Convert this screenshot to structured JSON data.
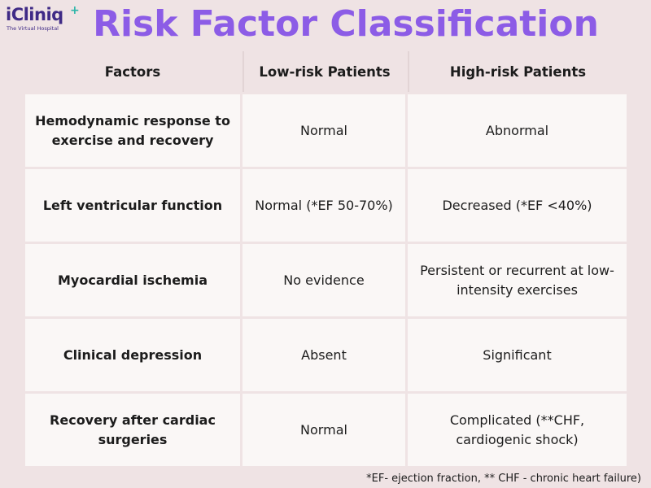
{
  "logo": {
    "name": "iCliniq",
    "plus": "+",
    "tagline": "The Virtual Hospital"
  },
  "title": "Risk Factor Classification",
  "table": {
    "headers": [
      "Factors",
      "Low-risk Patients",
      "High-risk Patients"
    ],
    "rows": [
      {
        "factor": "Hemodynamic response to exercise and recovery",
        "low": "Normal",
        "high": "Abnormal"
      },
      {
        "factor": "Left ventricular function",
        "low": "Normal (*EF 50-70%)",
        "high": "Decreased (*EF <40%)"
      },
      {
        "factor": "Myocardial ischemia",
        "low": "No evidence",
        "high": "Persistent or recurrent at low-intensity exercises"
      },
      {
        "factor": "Clinical depression",
        "low": "Absent",
        "high": "Significant"
      },
      {
        "factor": "Recovery after cardiac surgeries",
        "low": "Normal",
        "high": "Complicated (**CHF, cardiogenic shock)"
      }
    ]
  },
  "footnote": "*EF- ejection fraction, ** CHF - chronic heart failure)",
  "colors": {
    "background": "#efe3e4",
    "title": "#8c5ce6",
    "cell": "#faf7f6",
    "logo": "#3f2a86",
    "logo_accent": "#2bb5a8"
  }
}
